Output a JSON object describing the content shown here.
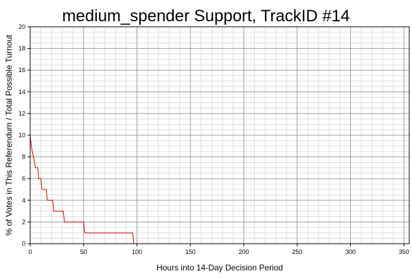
{
  "chart_data": {
    "type": "line",
    "title": "medium_spender Support, TrackID #14",
    "xlabel": "Hours into 14-Day Decision Period",
    "ylabel": "% of Votes in This Referendum / Total Possible Turnout",
    "xlim": [
      0,
      355
    ],
    "ylim": [
      0,
      20
    ],
    "x_ticks": [
      0,
      50,
      100,
      150,
      200,
      250,
      300,
      350
    ],
    "y_ticks": [
      0,
      2,
      4,
      6,
      8,
      10,
      12,
      14,
      16,
      18,
      20
    ],
    "grid": true,
    "series": [
      {
        "color": "#cc0000",
        "x": [
          0,
          1,
          2,
          3,
          4,
          5,
          7,
          8,
          10,
          11,
          15,
          16,
          21,
          22,
          31,
          32,
          50,
          51,
          96,
          97,
          337
        ],
        "y": [
          10,
          9,
          8.5,
          8,
          7.5,
          7,
          7,
          6,
          6,
          5,
          5,
          4,
          4,
          3,
          3,
          2,
          2,
          1,
          1,
          0,
          0
        ]
      }
    ]
  }
}
